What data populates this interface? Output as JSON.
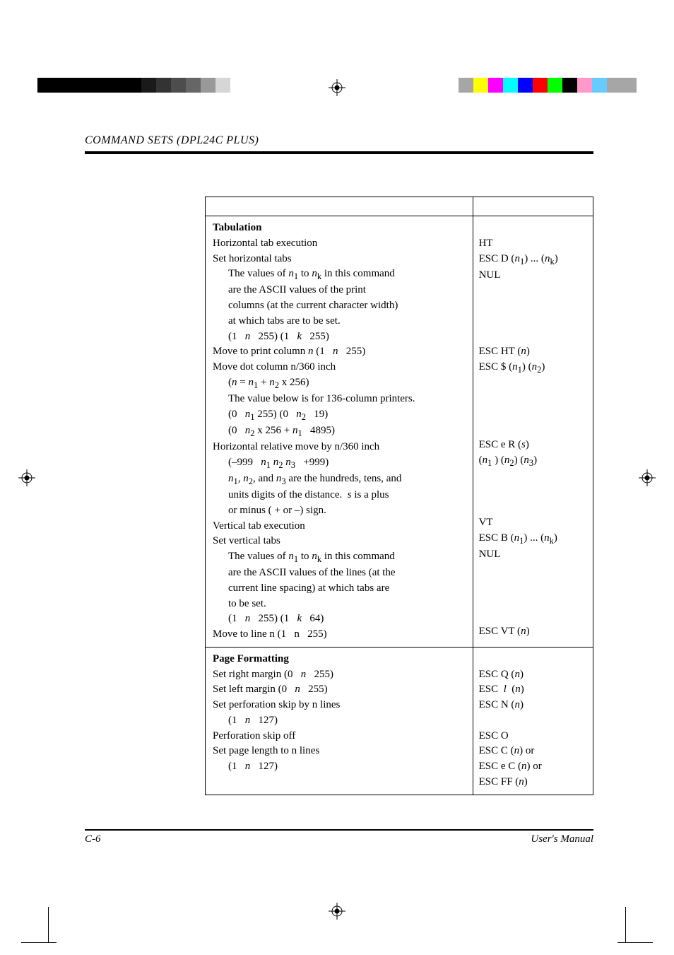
{
  "header": {
    "title": "COMMAND SETS (DPL24C PLUS)"
  },
  "footer": {
    "page": "C-6",
    "manual": "User's Manual"
  },
  "colorbars": {
    "left_gradient": [
      "#000000",
      "#1a1a1a",
      "#333333",
      "#4d4d4d",
      "#666666",
      "#999999",
      "#d6d6d6",
      "#ffffff"
    ],
    "right_colors": [
      "#a6a6a6",
      "#ffff00",
      "#ff00ff",
      "#00ffff",
      "#0000ff",
      "#ff0000",
      "#00ff00",
      "#000000",
      "#ff99cc",
      "#66ccff",
      "#a6a6a6"
    ]
  },
  "table": {
    "sections": [
      {
        "title": "Tabulation",
        "rows": [
          {
            "l": "Horizontal tab execution",
            "r": "HT"
          },
          {
            "l": "Set horizontal tabs",
            "r": "ESC D (<i>n</i><sub>1</sub>) ... (<i>n</i><sub>k</sub>)"
          },
          {
            "l": "The values of <i>n</i><sub>1</sub> to <i>n</i><sub>k</sub> in this command",
            "r": "NUL",
            "indent": true
          },
          {
            "l": "are the ASCII values of the print",
            "indent": true
          },
          {
            "l": "columns (at the current character width)",
            "indent": true
          },
          {
            "l": "at which tabs are to be set.",
            "indent": true
          },
          {
            "l": "(1 &nbsp; <i>n</i> &nbsp; 255) (1 &nbsp; <i>k</i> &nbsp; 255)",
            "indent": true
          },
          {
            "l": "Move to print column <i>n</i> (1 &nbsp; <i>n</i> &nbsp; 255)",
            "r": "ESC HT (<i>n</i>)"
          },
          {
            "l": "Move dot column n/360 inch",
            "r": "ESC $ (<i>n</i><sub>1</sub>) (<i>n</i><sub>2</sub>)"
          },
          {
            "l": "(<i>n</i> = <i>n</i><sub>1</sub> + <i>n</i><sub>2</sub> x 256)",
            "indent": true
          },
          {
            "l": "The value below is for 136-column printers.",
            "indent": true
          },
          {
            "l": "(0 &nbsp; <i>n</i><sub>1</sub> 255) (0 &nbsp; <i>n</i><sub>2</sub> &nbsp; 19)",
            "indent": true
          },
          {
            "l": "(0 &nbsp; <i>n</i><sub>2</sub> x 256 + <i>n</i><sub>1</sub> &nbsp; 4895)",
            "indent": true
          },
          {
            "l": "Horizontal relative move by n/360 inch",
            "r": "ESC e R (<i>s</i>)"
          },
          {
            "l": "(–999 &nbsp; <i>n</i><sub>1</sub> <i>n</i><sub>2</sub> <i>n</i><sub>3</sub> &nbsp; +999)",
            "r": "(<i>n</i><sub>1</sub> ) (<i>n</i><sub>2</sub>) (<i>n</i><sub>3</sub>)",
            "indent": true
          },
          {
            "l": "<i>n</i><sub>1</sub>, <i>n</i><sub>2</sub>, and <i>n</i><sub>3</sub> are the hundreds, tens, and",
            "indent": true
          },
          {
            "l": "units digits of the distance.&nbsp;&nbsp;<i>s</i> is a plus",
            "indent": true
          },
          {
            "l": "or minus ( + or –) sign.",
            "indent": true
          },
          {
            "l": "Vertical tab execution",
            "r": "VT"
          },
          {
            "l": "Set vertical tabs",
            "r": "ESC B (<i>n</i><sub>1</sub>) ... (<i>n</i><sub>k</sub>)"
          },
          {
            "l": "The values of <i>n</i><sub>1</sub> to <i>n</i><sub>k</sub> in this command",
            "r": "NUL",
            "indent": true
          },
          {
            "l": "are the ASCII values of the lines (at the",
            "indent": true
          },
          {
            "l": "current line spacing) at which tabs are",
            "indent": true
          },
          {
            "l": "to be set.",
            "indent": true
          },
          {
            "l": "(1 &nbsp; <i>n</i> &nbsp; 255) (1 &nbsp; <i>k</i> &nbsp; 64)",
            "indent": true
          },
          {
            "l": "Move to line n (1 &nbsp; n &nbsp; 255)",
            "r": "ESC VT (<i>n</i>)"
          }
        ]
      },
      {
        "title": "Page Formatting",
        "rows": [
          {
            "l": "Set right margin (0 &nbsp; <i>n</i> &nbsp; 255)",
            "r": "ESC Q (<i>n</i>)"
          },
          {
            "l": "Set left margin (0 &nbsp; <i>n</i> &nbsp; 255)",
            "r": "ESC &nbsp;<i>l</i>&nbsp; (<i>n</i>)"
          },
          {
            "l": "Set perforation skip by n lines",
            "r": "ESC N (<i>n</i>)"
          },
          {
            "l": "(1 &nbsp; <i>n</i> &nbsp; 127)",
            "indent": true
          },
          {
            "l": "Perforation skip off",
            "r": "ESC O"
          },
          {
            "l": "Set page length to n lines",
            "r": "ESC C (<i>n</i>) or"
          },
          {
            "l": "(1 &nbsp; <i>n</i> &nbsp; 127)",
            "r": "ESC e C (<i>n</i>) or",
            "indent": true
          },
          {
            "l": "",
            "r": "ESC FF (<i>n</i>)"
          }
        ]
      }
    ]
  }
}
